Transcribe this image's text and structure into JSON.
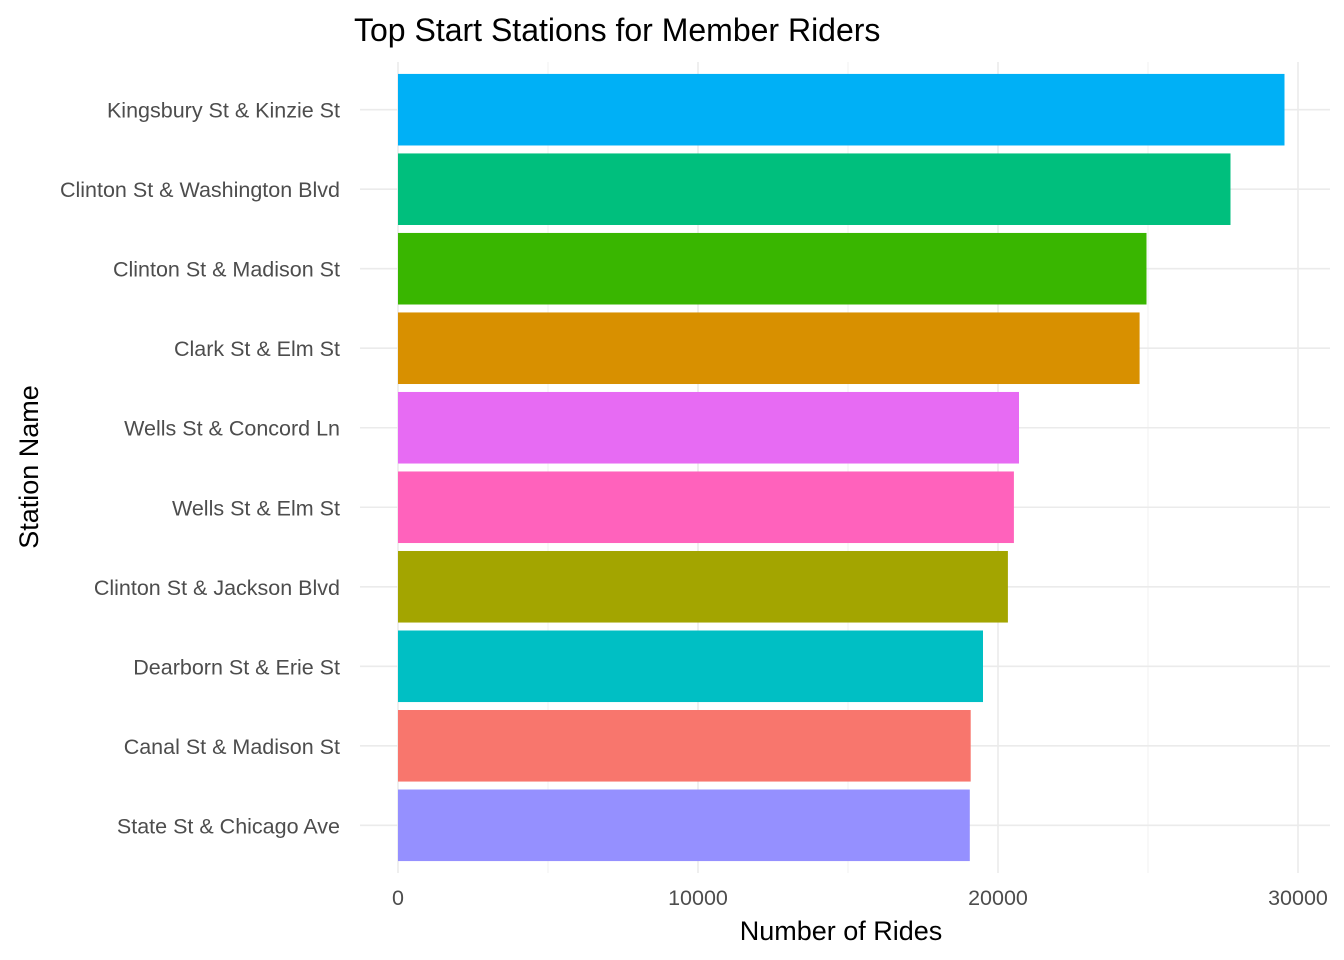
{
  "chart_data": {
    "type": "bar",
    "orientation": "horizontal",
    "title": "Top Start Stations for Member Riders",
    "xlabel": "Number of Rides",
    "ylabel": "Station Name",
    "xlim": [
      0,
      30000
    ],
    "x_ticks": [
      0,
      10000,
      20000,
      30000
    ],
    "x_tick_labels": [
      "0",
      "10000",
      "20000",
      "30000"
    ],
    "grid": true,
    "legend": "none",
    "categories": [
      "Kingsbury St & Kinzie St",
      "Clinton St & Washington Blvd",
      "Clinton St & Madison St",
      "Clark St & Elm St",
      "Wells St & Concord Ln",
      "Wells St & Elm St",
      "Clinton St & Jackson Blvd",
      "Dearborn St & Erie St",
      "Canal St & Madison St",
      "State St & Chicago Ave"
    ],
    "values": [
      29550,
      27750,
      24950,
      24720,
      20700,
      20530,
      20330,
      19500,
      19090,
      19060
    ],
    "colors": [
      "#00B0F6",
      "#00BF7D",
      "#39B600",
      "#D89000",
      "#E76BF3",
      "#FF62BC",
      "#A3A500",
      "#00BFC4",
      "#F8766D",
      "#9590FF"
    ]
  }
}
